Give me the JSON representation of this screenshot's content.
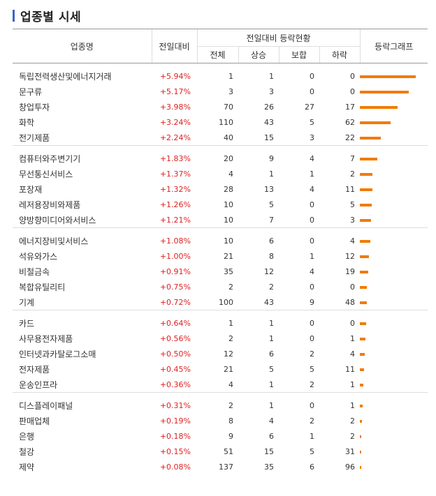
{
  "title": "업종별 시세",
  "colors": {
    "up": "#e02020",
    "bar": "#f07c00",
    "accent": "#3c64c8"
  },
  "header": {
    "col_name": "업종명",
    "col_change": "전일대비",
    "col_group": "전일대비 등락현황",
    "col_total": "전체",
    "col_up": "상승",
    "col_flat": "보합",
    "col_down": "하락",
    "col_graph": "등락그래프"
  },
  "groups": [
    {
      "rows": [
        {
          "name": "독립전력생산및에너지거래",
          "change": "+5.94%",
          "total": "1",
          "up": "1",
          "flat": "0",
          "down": "0",
          "pct": 5.94
        },
        {
          "name": "문구류",
          "change": "+5.17%",
          "total": "3",
          "up": "3",
          "flat": "0",
          "down": "0",
          "pct": 5.17
        },
        {
          "name": "창업투자",
          "change": "+3.98%",
          "total": "70",
          "up": "26",
          "flat": "27",
          "down": "17",
          "pct": 3.98
        },
        {
          "name": "화학",
          "change": "+3.24%",
          "total": "110",
          "up": "43",
          "flat": "5",
          "down": "62",
          "pct": 3.24
        },
        {
          "name": "전기제품",
          "change": "+2.24%",
          "total": "40",
          "up": "15",
          "flat": "3",
          "down": "22",
          "pct": 2.24
        }
      ]
    },
    {
      "rows": [
        {
          "name": "컴퓨터와주변기기",
          "change": "+1.83%",
          "total": "20",
          "up": "9",
          "flat": "4",
          "down": "7",
          "pct": 1.83
        },
        {
          "name": "무선통신서비스",
          "change": "+1.37%",
          "total": "4",
          "up": "1",
          "flat": "1",
          "down": "2",
          "pct": 1.37
        },
        {
          "name": "포장재",
          "change": "+1.32%",
          "total": "28",
          "up": "13",
          "flat": "4",
          "down": "11",
          "pct": 1.32
        },
        {
          "name": "레저용장비와제품",
          "change": "+1.26%",
          "total": "10",
          "up": "5",
          "flat": "0",
          "down": "5",
          "pct": 1.26
        },
        {
          "name": "양방향미디어와서비스",
          "change": "+1.21%",
          "total": "10",
          "up": "7",
          "flat": "0",
          "down": "3",
          "pct": 1.21
        }
      ]
    },
    {
      "rows": [
        {
          "name": "에너지장비및서비스",
          "change": "+1.08%",
          "total": "10",
          "up": "6",
          "flat": "0",
          "down": "4",
          "pct": 1.08
        },
        {
          "name": "석유와가스",
          "change": "+1.00%",
          "total": "21",
          "up": "8",
          "flat": "1",
          "down": "12",
          "pct": 1.0
        },
        {
          "name": "비철금속",
          "change": "+0.91%",
          "total": "35",
          "up": "12",
          "flat": "4",
          "down": "19",
          "pct": 0.91
        },
        {
          "name": "복합유틸리티",
          "change": "+0.75%",
          "total": "2",
          "up": "2",
          "flat": "0",
          "down": "0",
          "pct": 0.75
        },
        {
          "name": "기계",
          "change": "+0.72%",
          "total": "100",
          "up": "43",
          "flat": "9",
          "down": "48",
          "pct": 0.72
        }
      ]
    },
    {
      "rows": [
        {
          "name": "카드",
          "change": "+0.64%",
          "total": "1",
          "up": "1",
          "flat": "0",
          "down": "0",
          "pct": 0.64
        },
        {
          "name": "사무용전자제품",
          "change": "+0.56%",
          "total": "2",
          "up": "1",
          "flat": "0",
          "down": "1",
          "pct": 0.56
        },
        {
          "name": "인터넷과카탈로그소매",
          "change": "+0.50%",
          "total": "12",
          "up": "6",
          "flat": "2",
          "down": "4",
          "pct": 0.5
        },
        {
          "name": "전자제품",
          "change": "+0.45%",
          "total": "21",
          "up": "5",
          "flat": "5",
          "down": "11",
          "pct": 0.45
        },
        {
          "name": "운송인프라",
          "change": "+0.36%",
          "total": "4",
          "up": "1",
          "flat": "2",
          "down": "1",
          "pct": 0.36
        }
      ]
    },
    {
      "rows": [
        {
          "name": "디스플레이패널",
          "change": "+0.31%",
          "total": "2",
          "up": "1",
          "flat": "0",
          "down": "1",
          "pct": 0.31
        },
        {
          "name": "판매업체",
          "change": "+0.19%",
          "total": "8",
          "up": "4",
          "flat": "2",
          "down": "2",
          "pct": 0.19
        },
        {
          "name": "은행",
          "change": "+0.18%",
          "total": "9",
          "up": "6",
          "flat": "1",
          "down": "2",
          "pct": 0.18
        },
        {
          "name": "철강",
          "change": "+0.15%",
          "total": "51",
          "up": "15",
          "flat": "5",
          "down": "31",
          "pct": 0.15
        },
        {
          "name": "제약",
          "change": "+0.08%",
          "total": "137",
          "up": "35",
          "flat": "6",
          "down": "96",
          "pct": 0.08
        }
      ]
    }
  ]
}
